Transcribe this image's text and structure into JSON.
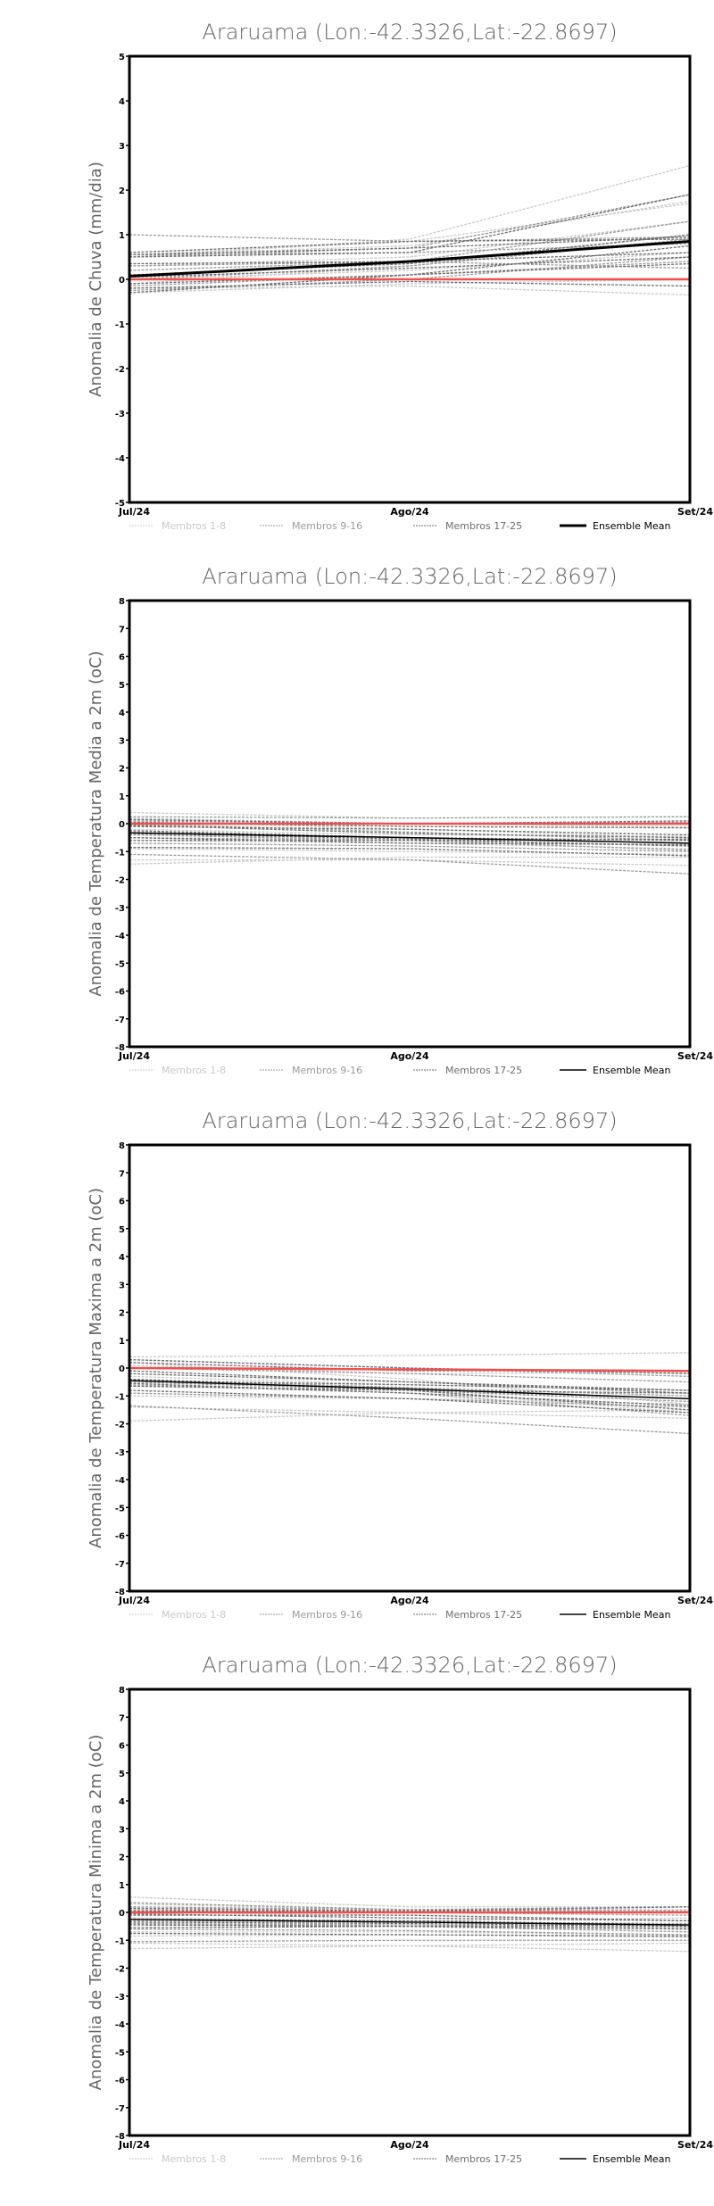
{
  "legend": [
    {
      "label": "Membros 1-8",
      "color": "#c8c8c8"
    },
    {
      "label": "Membros 9-16",
      "color": "#9a9a9a"
    },
    {
      "label": "Membros 17-25",
      "color": "#6e6e6e"
    },
    {
      "label": "Ensemble Mean",
      "color": "#000000"
    }
  ],
  "ref_color": "#f05050",
  "chart_data": [
    {
      "type": "line",
      "title": "Araruama (Lon:-42.3326,Lat:-22.8697)",
      "xlabel": "",
      "ylabel": "Anomalia de Chuva (mm/dia)",
      "categories": [
        "Jul/24",
        "Ago/24",
        "Set/24"
      ],
      "ylim": [
        -5,
        5
      ],
      "yticks": [
        -5,
        -4,
        -3,
        -2,
        -1,
        0,
        1,
        2,
        3,
        4,
        5
      ],
      "mean_width": 3,
      "members": [
        [
          0.55,
          0.85,
          1.7
        ],
        [
          0.5,
          0.9,
          2.55
        ],
        [
          -0.1,
          0.3,
          1.0
        ],
        [
          0.3,
          0.5,
          1.3
        ],
        [
          -0.3,
          -0.1,
          0.0
        ],
        [
          0.0,
          0.2,
          0.6
        ],
        [
          -0.2,
          -0.15,
          -0.35
        ],
        [
          0.55,
          0.75,
          1.75
        ],
        [
          1.0,
          0.85,
          0.95
        ],
        [
          0.5,
          0.7,
          1.9
        ],
        [
          -0.25,
          0.0,
          0.5
        ],
        [
          0.3,
          0.4,
          0.25
        ],
        [
          0.55,
          0.6,
          0.8
        ],
        [
          0.0,
          0.3,
          0.9
        ],
        [
          -0.15,
          0.1,
          0.4
        ],
        [
          0.2,
          0.4,
          1.3
        ],
        [
          0.5,
          0.6,
          1.9
        ],
        [
          -0.3,
          0.1,
          0.75
        ],
        [
          0.6,
          0.85,
          0.9
        ],
        [
          0.1,
          0.35,
          1.0
        ],
        [
          -0.2,
          -0.05,
          -0.15
        ],
        [
          0.05,
          0.25,
          0.5
        ],
        [
          0.35,
          0.4,
          0.6
        ],
        [
          -0.1,
          0.1,
          0.35
        ],
        [
          0.55,
          0.7,
          0.95
        ]
      ],
      "ensemble_mean": [
        0.07,
        0.4,
        0.85
      ],
      "reference": [
        0.0,
        0.0,
        0.0
      ]
    },
    {
      "type": "line",
      "title": "Araruama (Lon:-42.3326,Lat:-22.8697)",
      "xlabel": "",
      "ylabel": "Anomalia de Temperatura Media a 2m (oC)",
      "categories": [
        "Jul/24",
        "Ago/24",
        "Set/24"
      ],
      "ylim": [
        -8,
        8
      ],
      "yticks": [
        -8,
        -7,
        -6,
        -5,
        -4,
        -3,
        -2,
        -1,
        0,
        1,
        2,
        3,
        4,
        5,
        6,
        7,
        8
      ],
      "mean_width": 1.5,
      "members": [
        [
          0.4,
          0.2,
          0.25
        ],
        [
          -1.45,
          -1.2,
          -1.2
        ],
        [
          0.1,
          -0.2,
          -0.5
        ],
        [
          -0.6,
          -0.7,
          -0.9
        ],
        [
          -1.3,
          -1.3,
          -1.5
        ],
        [
          -0.2,
          -0.4,
          -0.45
        ],
        [
          0.2,
          0.0,
          -0.1
        ],
        [
          -0.9,
          -1.0,
          -1.1
        ],
        [
          0.25,
          0.2,
          0.25
        ],
        [
          -0.5,
          -0.6,
          -0.8
        ],
        [
          0.0,
          -0.3,
          -0.6
        ],
        [
          -1.1,
          -1.3,
          -1.8
        ],
        [
          -0.3,
          -0.5,
          -0.7
        ],
        [
          0.1,
          0.0,
          0.05
        ],
        [
          -0.7,
          -0.8,
          -1.0
        ],
        [
          -0.4,
          -0.6,
          -0.95
        ],
        [
          -0.1,
          -0.2,
          -0.4
        ],
        [
          -0.5,
          -0.7,
          -0.75
        ],
        [
          0.05,
          -0.1,
          -0.15
        ],
        [
          -0.85,
          -0.9,
          -1.15
        ],
        [
          -0.25,
          -0.5,
          -0.6
        ],
        [
          -0.6,
          -0.6,
          -0.55
        ],
        [
          0.15,
          0.0,
          0.1
        ],
        [
          -0.35,
          -0.55,
          -0.8
        ],
        [
          -0.05,
          -0.35,
          -0.5
        ]
      ],
      "ensemble_mean": [
        -0.33,
        -0.5,
        -0.7
      ],
      "reference": [
        0.0,
        0.0,
        0.0
      ]
    },
    {
      "type": "line",
      "title": "Araruama (Lon:-42.3326,Lat:-22.8697)",
      "xlabel": "",
      "ylabel": "Anomalia de Temperatura Maxima a 2m (oC)",
      "categories": [
        "Jul/24",
        "Ago/24",
        "Set/24"
      ],
      "ylim": [
        -8,
        8
      ],
      "yticks": [
        -8,
        -7,
        -6,
        -5,
        -4,
        -3,
        -2,
        -1,
        0,
        1,
        2,
        3,
        4,
        5,
        6,
        7,
        8
      ],
      "mean_width": 1.5,
      "members": [
        [
          0.4,
          0.45,
          0.55
        ],
        [
          -1.9,
          -1.6,
          -1.5
        ],
        [
          0.2,
          -0.4,
          -1.3
        ],
        [
          -0.5,
          -0.8,
          -1.6
        ],
        [
          -1.4,
          -1.6,
          -1.8
        ],
        [
          -0.3,
          -0.6,
          -0.8
        ],
        [
          0.1,
          -0.2,
          -0.15
        ],
        [
          -1.0,
          -1.1,
          -1.3
        ],
        [
          0.3,
          0.0,
          -0.3
        ],
        [
          -0.6,
          -0.9,
          -1.7
        ],
        [
          -0.4,
          -0.7,
          -1.0
        ],
        [
          -1.35,
          -1.8,
          -2.35
        ],
        [
          -0.5,
          -0.8,
          -1.1
        ],
        [
          0.0,
          -0.2,
          -0.5
        ],
        [
          -0.9,
          -1.1,
          -1.4
        ],
        [
          -0.45,
          -0.8,
          -1.2
        ],
        [
          -0.2,
          -0.5,
          -0.8
        ],
        [
          -0.55,
          -0.9,
          -1.35
        ],
        [
          0.2,
          -0.1,
          -0.1
        ],
        [
          -0.8,
          -1.1,
          -1.6
        ],
        [
          -0.45,
          -0.6,
          -0.8
        ],
        [
          -0.65,
          -0.8,
          -0.9
        ],
        [
          0.3,
          0.0,
          -0.2
        ],
        [
          -0.4,
          -0.8,
          -1.5
        ],
        [
          -0.1,
          -0.5,
          -0.9
        ]
      ],
      "ensemble_mean": [
        -0.45,
        -0.75,
        -1.1
      ],
      "reference": [
        0.0,
        -0.05,
        -0.1
      ]
    },
    {
      "type": "line",
      "title": "Araruama (Lon:-42.3326,Lat:-22.8697)",
      "xlabel": "",
      "ylabel": "Anomalia de Temperatura Minima a 2m (oC)",
      "categories": [
        "Jul/24",
        "Ago/24",
        "Set/24"
      ],
      "ylim": [
        -8,
        8
      ],
      "yticks": [
        -8,
        -7,
        -6,
        -5,
        -4,
        -3,
        -2,
        -1,
        0,
        1,
        2,
        3,
        4,
        5,
        6,
        7,
        8
      ],
      "mean_width": 1.5,
      "members": [
        [
          0.55,
          0.2,
          0.2
        ],
        [
          -1.3,
          -1.2,
          -1.1
        ],
        [
          0.0,
          -0.1,
          -0.3
        ],
        [
          -0.7,
          -0.7,
          -0.8
        ],
        [
          -1.1,
          -1.2,
          -1.4
        ],
        [
          -0.2,
          -0.3,
          -0.2
        ],
        [
          0.3,
          0.1,
          0.1
        ],
        [
          -0.85,
          -0.8,
          -0.9
        ],
        [
          0.35,
          0.1,
          0.05
        ],
        [
          -0.4,
          -0.5,
          -0.7
        ],
        [
          0.1,
          0.0,
          -0.1
        ],
        [
          -1.05,
          -1.0,
          -1.0
        ],
        [
          -0.3,
          -0.35,
          -0.4
        ],
        [
          0.2,
          0.1,
          0.2
        ],
        [
          -0.6,
          -0.65,
          -0.8
        ],
        [
          -0.4,
          -0.45,
          -0.55
        ],
        [
          -0.1,
          -0.1,
          -0.3
        ],
        [
          -0.45,
          -0.5,
          -0.45
        ],
        [
          0.05,
          0.05,
          0.0
        ],
        [
          -0.75,
          -0.8,
          -0.85
        ],
        [
          -0.25,
          -0.3,
          -0.45
        ],
        [
          -0.55,
          -0.5,
          -0.6
        ],
        [
          0.15,
          0.05,
          0.2
        ],
        [
          -0.35,
          -0.4,
          -0.5
        ],
        [
          -0.05,
          -0.2,
          -0.3
        ]
      ],
      "ensemble_mean": [
        -0.25,
        -0.35,
        -0.45
      ],
      "reference": [
        0.0,
        0.0,
        0.0
      ]
    }
  ]
}
